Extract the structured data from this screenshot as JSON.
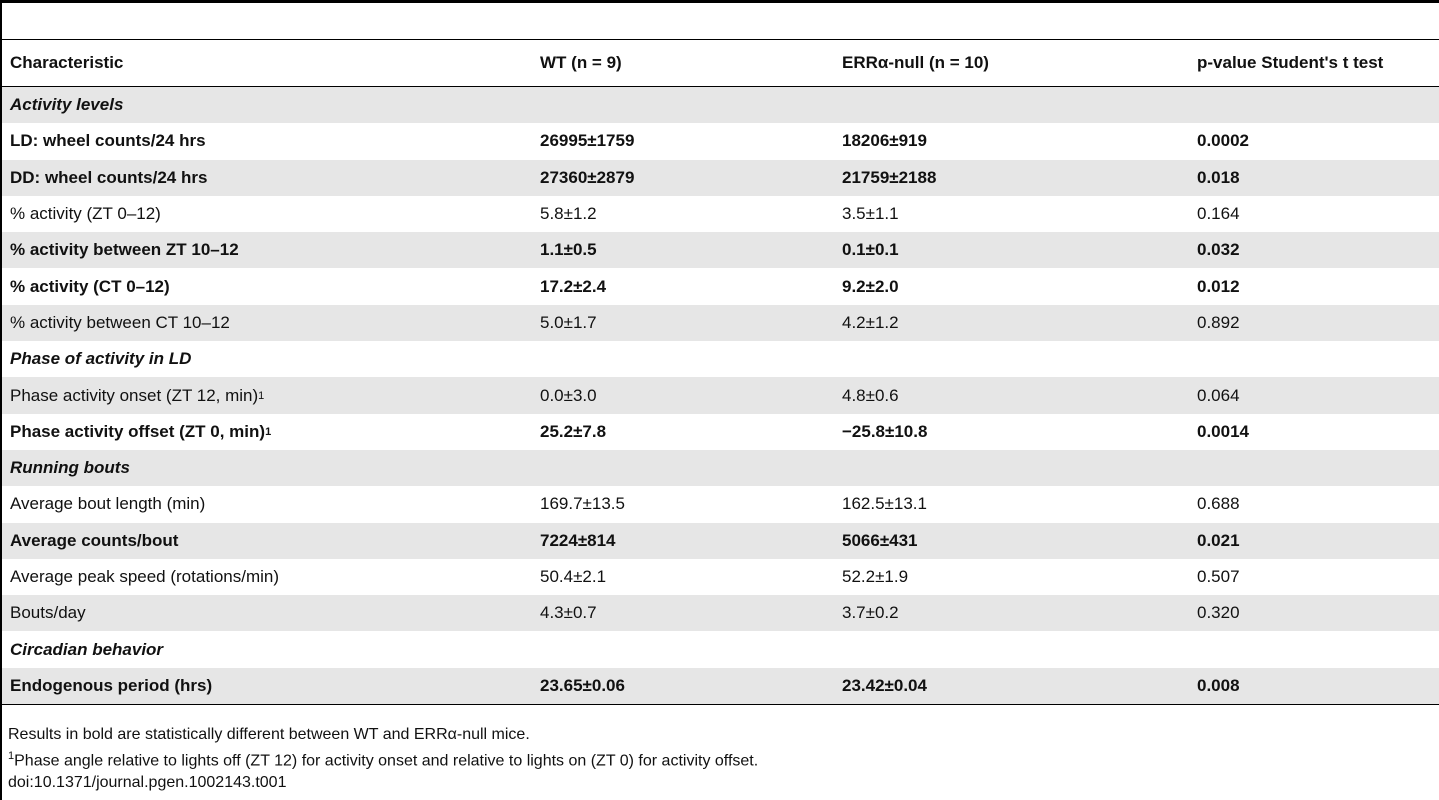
{
  "table": {
    "header": [
      "Characteristic",
      "WT (n = 9)",
      "ERRα-null (n = 10)",
      "p-value Student's t test"
    ],
    "rows": [
      {
        "section": "Activity levels"
      },
      {
        "cells": [
          "LD: wheel counts/24 hrs",
          "26995±1759",
          "18206±919",
          "0.0002"
        ],
        "bold": true
      },
      {
        "cells": [
          "DD: wheel counts/24 hrs",
          "27360±2879",
          "21759±2188",
          "0.018"
        ],
        "bold": true
      },
      {
        "cells": [
          "% activity (ZT 0–12)",
          "5.8±1.2",
          "3.5±1.1",
          "0.164"
        ],
        "bold": false
      },
      {
        "cells": [
          "% activity between ZT 10–12",
          "1.1±0.5",
          "0.1±0.1",
          "0.032"
        ],
        "bold": true
      },
      {
        "cells": [
          "% activity (CT 0–12)",
          "17.2±2.4",
          "9.2±2.0",
          "0.012"
        ],
        "bold": true
      },
      {
        "cells": [
          "% activity between CT 10–12",
          "5.0±1.7",
          "4.2±1.2",
          "0.892"
        ],
        "bold": false
      },
      {
        "section": "Phase of activity in LD"
      },
      {
        "cells": [
          "Phase activity onset (ZT 12, min)",
          "0.0±3.0",
          "4.8±0.6",
          "0.064"
        ],
        "note": "1",
        "bold": false
      },
      {
        "cells": [
          "Phase activity offset (ZT 0, min)",
          "25.2±7.8",
          "−25.8±10.8",
          "0.0014"
        ],
        "note": "1",
        "bold": true
      },
      {
        "section": "Running bouts"
      },
      {
        "cells": [
          "Average bout length (min)",
          "169.7±13.5",
          "162.5±13.1",
          "0.688"
        ],
        "bold": false
      },
      {
        "cells": [
          "Average counts/bout",
          "7224±814",
          "5066±431",
          "0.021"
        ],
        "bold": true
      },
      {
        "cells": [
          "Average peak speed (rotations/min)",
          "50.4±2.1",
          "52.2±1.9",
          "0.507"
        ],
        "bold": false
      },
      {
        "cells": [
          "Bouts/day",
          "4.3±0.7",
          "3.7±0.2",
          "0.320"
        ],
        "bold": false
      },
      {
        "section": "Circadian behavior"
      },
      {
        "cells": [
          "Endogenous period (hrs)",
          "23.65±0.06",
          "23.42±0.04",
          "0.008"
        ],
        "bold": true
      }
    ],
    "footnotes": [
      {
        "text": "Results in bold are statistically different between WT and ERRα-null mice."
      },
      {
        "mark": "1",
        "text": "Phase angle relative to lights off (ZT 12) for activity onset and relative to lights on (ZT 0) for activity offset."
      },
      {
        "text": "doi:10.1371/journal.pgen.1002143.t001"
      }
    ]
  }
}
